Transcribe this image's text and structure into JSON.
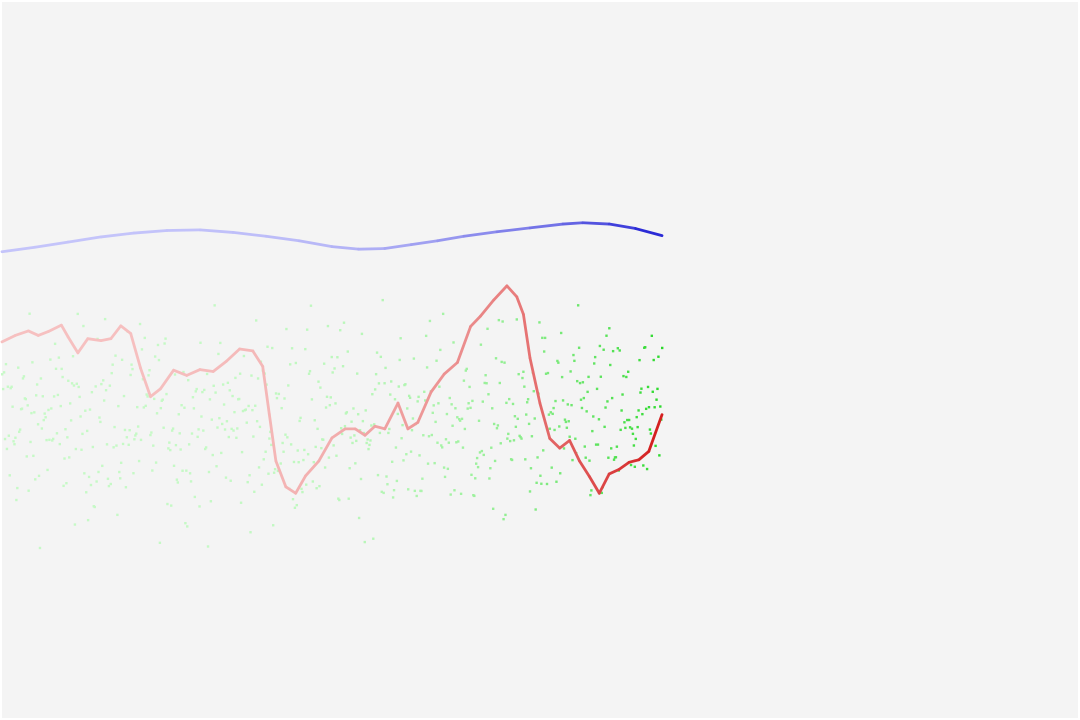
{
  "chart_data": {
    "type": "line",
    "title": "",
    "xlabel": "",
    "ylabel": "",
    "grid": false,
    "legend": "none",
    "xlim": [
      0,
      1
    ],
    "ylim": [
      0,
      1
    ],
    "background": "#f4f4f4",
    "series": [
      {
        "kind": "line",
        "color": "#2b2bd6",
        "fade_from": "#c4c4fa",
        "points": [
          [
            0,
            0.665
          ],
          [
            0.05,
            0.672
          ],
          [
            0.1,
            0.68
          ],
          [
            0.15,
            0.688
          ],
          [
            0.2,
            0.694
          ],
          [
            0.25,
            0.698
          ],
          [
            0.3,
            0.699
          ],
          [
            0.35,
            0.695
          ],
          [
            0.4,
            0.689
          ],
          [
            0.45,
            0.682
          ],
          [
            0.5,
            0.673
          ],
          [
            0.54,
            0.669
          ],
          [
            0.58,
            0.67
          ],
          [
            0.62,
            0.676
          ],
          [
            0.66,
            0.682
          ],
          [
            0.7,
            0.689
          ],
          [
            0.75,
            0.696
          ],
          [
            0.8,
            0.702
          ],
          [
            0.85,
            0.708
          ],
          [
            0.88,
            0.71
          ],
          [
            0.92,
            0.708
          ],
          [
            0.96,
            0.701
          ],
          [
            1.0,
            0.69
          ]
        ]
      },
      {
        "kind": "line",
        "color": "#d42020",
        "fade_from": "#f6c0c0",
        "points": [
          [
            0,
            0.525
          ],
          [
            0.02,
            0.535
          ],
          [
            0.04,
            0.542
          ],
          [
            0.055,
            0.535
          ],
          [
            0.07,
            0.541
          ],
          [
            0.09,
            0.551
          ],
          [
            0.1,
            0.533
          ],
          [
            0.115,
            0.508
          ],
          [
            0.13,
            0.53
          ],
          [
            0.15,
            0.527
          ],
          [
            0.165,
            0.53
          ],
          [
            0.18,
            0.55
          ],
          [
            0.195,
            0.538
          ],
          [
            0.21,
            0.484
          ],
          [
            0.225,
            0.44
          ],
          [
            0.24,
            0.452
          ],
          [
            0.26,
            0.481
          ],
          [
            0.28,
            0.473
          ],
          [
            0.3,
            0.482
          ],
          [
            0.32,
            0.479
          ],
          [
            0.34,
            0.495
          ],
          [
            0.36,
            0.514
          ],
          [
            0.38,
            0.511
          ],
          [
            0.395,
            0.487
          ],
          [
            0.405,
            0.413
          ],
          [
            0.415,
            0.34
          ],
          [
            0.43,
            0.3
          ],
          [
            0.445,
            0.29
          ],
          [
            0.46,
            0.317
          ],
          [
            0.48,
            0.34
          ],
          [
            0.5,
            0.376
          ],
          [
            0.52,
            0.39
          ],
          [
            0.535,
            0.39
          ],
          [
            0.55,
            0.38
          ],
          [
            0.565,
            0.394
          ],
          [
            0.58,
            0.39
          ],
          [
            0.6,
            0.43
          ],
          [
            0.615,
            0.39
          ],
          [
            0.63,
            0.4
          ],
          [
            0.65,
            0.447
          ],
          [
            0.67,
            0.475
          ],
          [
            0.69,
            0.493
          ],
          [
            0.71,
            0.549
          ],
          [
            0.725,
            0.565
          ],
          [
            0.745,
            0.59
          ],
          [
            0.765,
            0.612
          ],
          [
            0.78,
            0.595
          ],
          [
            0.79,
            0.568
          ],
          [
            0.8,
            0.5
          ],
          [
            0.815,
            0.43
          ],
          [
            0.83,
            0.375
          ],
          [
            0.845,
            0.36
          ],
          [
            0.86,
            0.372
          ],
          [
            0.875,
            0.34
          ],
          [
            0.89,
            0.316
          ],
          [
            0.905,
            0.29
          ],
          [
            0.92,
            0.32
          ],
          [
            0.935,
            0.327
          ],
          [
            0.95,
            0.338
          ],
          [
            0.965,
            0.342
          ],
          [
            0.98,
            0.355
          ],
          [
            1.0,
            0.412
          ]
        ]
      },
      {
        "kind": "scatter",
        "color": "#2bd92b",
        "fade_from": "#c6f9c6",
        "count": 700,
        "y_center": 0.4,
        "y_spread": 0.15
      }
    ]
  }
}
